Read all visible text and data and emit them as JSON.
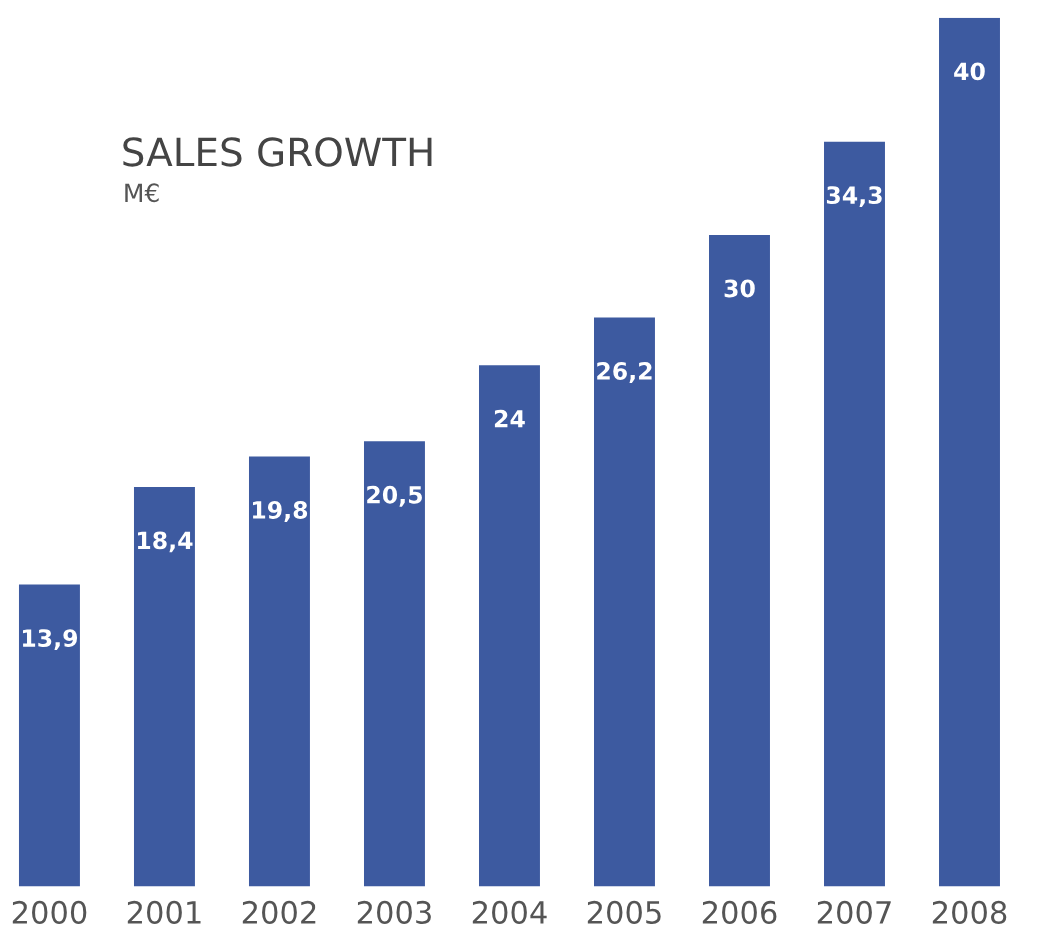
{
  "chart_data": {
    "type": "bar",
    "title": "SALES GROWTH",
    "subtitle": "M€",
    "categories": [
      "2000",
      "2001",
      "2002",
      "2003",
      "2004",
      "2005",
      "2006",
      "2007",
      "2008"
    ],
    "values": [
      13.9,
      18.4,
      19.8,
      20.5,
      24,
      26.2,
      30,
      34.3,
      40
    ],
    "value_labels": [
      "13,9",
      "18,4",
      "19,8",
      "20,5",
      "24",
      "26,2",
      "30",
      "34,3",
      "40"
    ],
    "color": "#3d5aa0",
    "ylim": [
      0,
      40
    ],
    "grid": false,
    "legend": false
  }
}
